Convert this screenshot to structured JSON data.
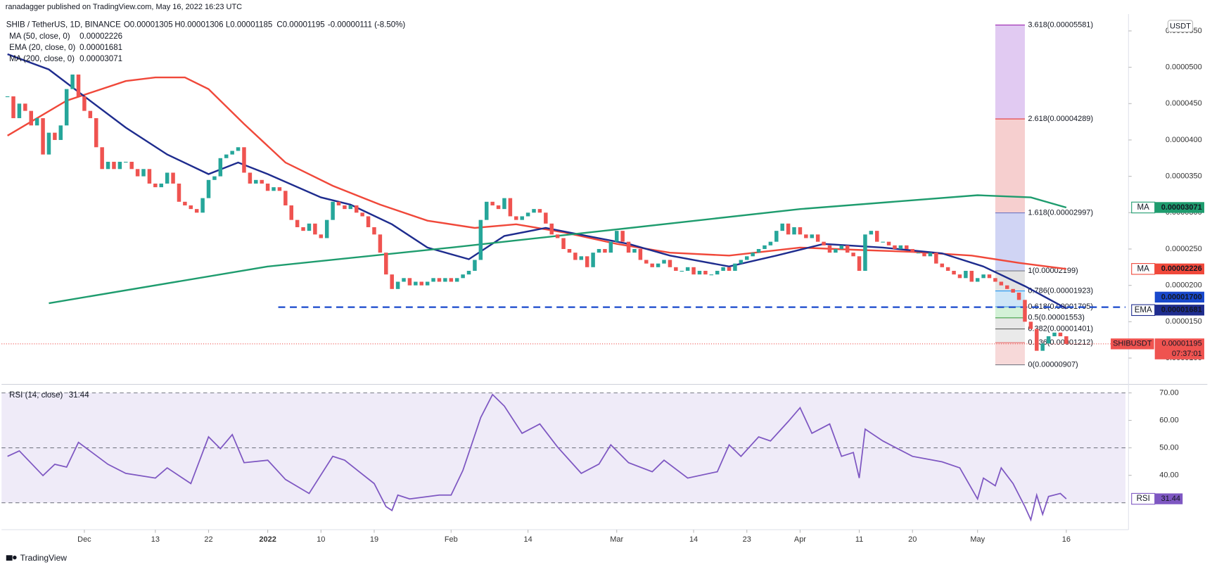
{
  "header": {
    "publisher": "ranadagger published on TradingView.com, May 16, 2022 16:23 UTC"
  },
  "chart_data": [
    {
      "type": "candlestick",
      "title": "SHIB / TetherUS, 1D, BINANCE",
      "ohlc": [
        "O0.00001305",
        "H0.00001306",
        "L0.00001185",
        "C0.00001195",
        "-0.00000111 (-8.50%)"
      ],
      "currency": "USDT",
      "up_color": "#26a69a",
      "down_color": "#ef5350",
      "xlim": [
        "2021-11-17",
        "2022-05-26"
      ],
      "ylim": [
        6.38e-06,
        5.71e-05
      ],
      "yticks": [
        {
          "value": 1e-05,
          "label": "0.0000100"
        },
        {
          "value": 1.5e-05,
          "label": "0.0000150"
        },
        {
          "value": 2e-05,
          "label": "0.0000200"
        },
        {
          "value": 2.5e-05,
          "label": "0.0000250"
        },
        {
          "value": 3e-05,
          "label": "0.0000300"
        },
        {
          "value": 3.5e-05,
          "label": "0.0000350"
        },
        {
          "value": 4e-05,
          "label": "0.0000400"
        },
        {
          "value": 4.5e-05,
          "label": "0.0000450"
        },
        {
          "value": 5e-05,
          "label": "0.0000500"
        },
        {
          "value": 5.5e-05,
          "label": "0.0000550"
        }
      ],
      "x": [
        "2021-11-18",
        "2021-11-19",
        "2021-11-20",
        "2021-11-21",
        "2021-11-22",
        "2021-11-23",
        "2021-11-24",
        "2021-11-25",
        "2021-11-26",
        "2021-11-27",
        "2021-11-28",
        "2021-11-29",
        "2021-11-30",
        "2021-12-01",
        "2021-12-02",
        "2021-12-03",
        "2021-12-04",
        "2021-12-05",
        "2021-12-06",
        "2021-12-07",
        "2021-12-08",
        "2021-12-09",
        "2021-12-10",
        "2021-12-11",
        "2021-12-12",
        "2021-12-13",
        "2021-12-14",
        "2021-12-15",
        "2021-12-16",
        "2021-12-17",
        "2021-12-18",
        "2021-12-19",
        "2021-12-20",
        "2021-12-21",
        "2021-12-22",
        "2021-12-23",
        "2021-12-24",
        "2021-12-25",
        "2021-12-26",
        "2021-12-27",
        "2021-12-28",
        "2021-12-29",
        "2021-12-30",
        "2021-12-31",
        "2022-01-01",
        "2022-01-02",
        "2022-01-03",
        "2022-01-04",
        "2022-01-05",
        "2022-01-06",
        "2022-01-07",
        "2022-01-08",
        "2022-01-09",
        "2022-01-10",
        "2022-01-11",
        "2022-01-12",
        "2022-01-13",
        "2022-01-14",
        "2022-01-15",
        "2022-01-16",
        "2022-01-17",
        "2022-01-18",
        "2022-01-19",
        "2022-01-20",
        "2022-01-21",
        "2022-01-22",
        "2022-01-23",
        "2022-01-24",
        "2022-01-25",
        "2022-01-26",
        "2022-01-27",
        "2022-01-28",
        "2022-01-29",
        "2022-01-30",
        "2022-01-31",
        "2022-02-01",
        "2022-02-02",
        "2022-02-03",
        "2022-02-04",
        "2022-02-05",
        "2022-02-06",
        "2022-02-07",
        "2022-02-08",
        "2022-02-09",
        "2022-02-10",
        "2022-02-11",
        "2022-02-12",
        "2022-02-13",
        "2022-02-14",
        "2022-02-15",
        "2022-02-16",
        "2022-02-17",
        "2022-02-18",
        "2022-02-19",
        "2022-02-20",
        "2022-02-21",
        "2022-02-22",
        "2022-02-23",
        "2022-02-24",
        "2022-02-25",
        "2022-02-26",
        "2022-02-27",
        "2022-02-28",
        "2022-03-01",
        "2022-03-02",
        "2022-03-03",
        "2022-03-04",
        "2022-03-05",
        "2022-03-06",
        "2022-03-07",
        "2022-03-08",
        "2022-03-09",
        "2022-03-10",
        "2022-03-11",
        "2022-03-12",
        "2022-03-13",
        "2022-03-14",
        "2022-03-15",
        "2022-03-16",
        "2022-03-17",
        "2022-03-18",
        "2022-03-19",
        "2022-03-20",
        "2022-03-21",
        "2022-03-22",
        "2022-03-23",
        "2022-03-24",
        "2022-03-25",
        "2022-03-26",
        "2022-03-27",
        "2022-03-28",
        "2022-03-29",
        "2022-03-30",
        "2022-03-31",
        "2022-04-01",
        "2022-04-02",
        "2022-04-03",
        "2022-04-04",
        "2022-04-05",
        "2022-04-06",
        "2022-04-07",
        "2022-04-08",
        "2022-04-09",
        "2022-04-10",
        "2022-04-11",
        "2022-04-12",
        "2022-04-13",
        "2022-04-14",
        "2022-04-15",
        "2022-04-16",
        "2022-04-17",
        "2022-04-18",
        "2022-04-19",
        "2022-04-20",
        "2022-04-21",
        "2022-04-22",
        "2022-04-23",
        "2022-04-24",
        "2022-04-25",
        "2022-04-26",
        "2022-04-27",
        "2022-04-28",
        "2022-04-29",
        "2022-04-30",
        "2022-05-01",
        "2022-05-02",
        "2022-05-03",
        "2022-05-04",
        "2022-05-05",
        "2022-05-06",
        "2022-05-07",
        "2022-05-08",
        "2022-05-09",
        "2022-05-10",
        "2022-05-11",
        "2022-05-12",
        "2022-05-13",
        "2022-05-14",
        "2022-05-15",
        "2022-05-16"
      ],
      "close": [
        4.6e-05,
        4.3e-05,
        4.5e-05,
        4.4e-05,
        4.2e-05,
        4.3e-05,
        3.8e-05,
        4.1e-05,
        4e-05,
        4.2e-05,
        4.7e-05,
        4.9e-05,
        4.6e-05,
        4.4e-05,
        4.3e-05,
        3.9e-05,
        3.6e-05,
        3.7e-05,
        3.6e-05,
        3.7e-05,
        3.7e-05,
        3.6e-05,
        3.5e-05,
        3.6e-05,
        3.4e-05,
        3.35e-05,
        3.4e-05,
        3.55e-05,
        3.4e-05,
        3.15e-05,
        3.1e-05,
        3.05e-05,
        3e-05,
        3.2e-05,
        3.45e-05,
        3.5e-05,
        3.75e-05,
        3.8e-05,
        3.85e-05,
        3.9e-05,
        3.55e-05,
        3.4e-05,
        3.45e-05,
        3.4e-05,
        3.3e-05,
        3.35e-05,
        3.3e-05,
        3.1e-05,
        2.9e-05,
        2.8e-05,
        2.75e-05,
        2.85e-05,
        2.7e-05,
        2.65e-05,
        2.9e-05,
        3.15e-05,
        3.1e-05,
        3.05e-05,
        3.1e-05,
        3e-05,
        2.95e-05,
        2.8e-05,
        2.7e-05,
        2.45e-05,
        2.15e-05,
        1.95e-05,
        2.05e-05,
        2.1e-05,
        2e-05,
        2.05e-05,
        2e-05,
        2.05e-05,
        2.1e-05,
        2.05e-05,
        2.1e-05,
        2.05e-05,
        2.1e-05,
        2.15e-05,
        2.2e-05,
        2.35e-05,
        2.9e-05,
        3.15e-05,
        3.1e-05,
        3.05e-05,
        3.2e-05,
        2.95e-05,
        2.9e-05,
        2.95e-05,
        3e-05,
        3.05e-05,
        3e-05,
        2.85e-05,
        2.7e-05,
        2.65e-05,
        2.5e-05,
        2.45e-05,
        2.35e-05,
        2.4e-05,
        2.25e-05,
        2.45e-05,
        2.5e-05,
        2.45e-05,
        2.6e-05,
        2.75e-05,
        2.6e-05,
        2.45e-05,
        2.5e-05,
        2.35e-05,
        2.3e-05,
        2.25e-05,
        2.3e-05,
        2.35e-05,
        2.25e-05,
        2.2e-05,
        2.2e-05,
        2.25e-05,
        2.15e-05,
        2.2e-05,
        2.15e-05,
        2.15e-05,
        2.2e-05,
        2.25e-05,
        2.2e-05,
        2.3e-05,
        2.35e-05,
        2.4e-05,
        2.45e-05,
        2.5e-05,
        2.55e-05,
        2.6e-05,
        2.75e-05,
        2.85e-05,
        2.7e-05,
        2.8e-05,
        2.7e-05,
        2.65e-05,
        2.7e-05,
        2.6e-05,
        2.55e-05,
        2.45e-05,
        2.5e-05,
        2.55e-05,
        2.45e-05,
        2.4e-05,
        2.2e-05,
        2.7e-05,
        2.75e-05,
        2.6e-05,
        2.6e-05,
        2.55e-05,
        2.5e-05,
        2.55e-05,
        2.5e-05,
        2.45e-05,
        2.45e-05,
        2.4e-05,
        2.45e-05,
        2.3e-05,
        2.25e-05,
        2.2e-05,
        2.15e-05,
        2.1e-05,
        2.2e-05,
        2.05e-05,
        2.1e-05,
        2.15e-05,
        2.1e-05,
        2.05e-05,
        2e-05,
        1.95e-05,
        1.9e-05,
        1.8e-05,
        1.5e-05,
        1.4e-05,
        1.1e-05,
        1.2e-05,
        1.3e-05,
        1.35e-05,
        1.3e-05,
        1.195e-05
      ],
      "series": [
        {
          "name": "MA (50, close, 0)",
          "short": "MA",
          "color": "#f0483a",
          "x": [
            "2021-11-18",
            "2021-11-28",
            "2021-12-08",
            "2021-12-13",
            "2021-12-18",
            "2021-12-22",
            "2021-12-28",
            "2022-01-04",
            "2022-01-12",
            "2022-01-20",
            "2022-01-28",
            "2022-02-05",
            "2022-02-12",
            "2022-02-20",
            "2022-03-01",
            "2022-03-10",
            "2022-03-20",
            "2022-04-01",
            "2022-04-10",
            "2022-04-20",
            "2022-04-30",
            "2022-05-08",
            "2022-05-16"
          ],
          "values": [
            4.06e-05,
            4.54e-05,
            4.81e-05,
            4.86e-05,
            4.86e-05,
            4.7e-05,
            4.22e-05,
            3.69e-05,
            3.37e-05,
            3.11e-05,
            2.89e-05,
            2.79e-05,
            2.84e-05,
            2.73e-05,
            2.57e-05,
            2.45e-05,
            2.41e-05,
            2.52e-05,
            2.49e-05,
            2.46e-05,
            2.41e-05,
            2.31e-05,
            2.226e-05
          ]
        },
        {
          "name": "EMA (20, close, 0)",
          "short": "EMA",
          "color": "#1e2c8e",
          "x": [
            "2021-11-18",
            "2021-11-25",
            "2021-12-01",
            "2021-12-08",
            "2021-12-15",
            "2021-12-22",
            "2021-12-27",
            "2022-01-01",
            "2022-01-10",
            "2022-01-15",
            "2022-01-22",
            "2022-01-28",
            "2022-02-04",
            "2022-02-10",
            "2022-02-17",
            "2022-02-24",
            "2022-03-03",
            "2022-03-10",
            "2022-03-20",
            "2022-03-28",
            "2022-04-05",
            "2022-04-15",
            "2022-04-25",
            "2022-05-02",
            "2022-05-09",
            "2022-05-16"
          ],
          "values": [
            5.18e-05,
            4.97e-05,
            4.6e-05,
            4.17e-05,
            3.8e-05,
            3.53e-05,
            3.69e-05,
            3.53e-05,
            3.21e-05,
            3.11e-05,
            2.84e-05,
            2.52e-05,
            2.36e-05,
            2.68e-05,
            2.79e-05,
            2.68e-05,
            2.57e-05,
            2.41e-05,
            2.26e-05,
            2.41e-05,
            2.57e-05,
            2.52e-05,
            2.44e-05,
            2.26e-05,
            1.99e-05,
            1.681e-05
          ]
        },
        {
          "name": "MA (200, close, 0)",
          "short": "MA",
          "color": "#1e9c6e",
          "x": [
            "2021-11-25",
            "2022-01-01",
            "2022-02-01",
            "2022-03-01",
            "2022-04-01",
            "2022-05-01",
            "2022-05-10",
            "2022-05-16"
          ],
          "values": [
            1.755e-05,
            2.26e-05,
            2.52e-05,
            2.77e-05,
            3.05e-05,
            3.24e-05,
            3.21e-05,
            3.071e-05
          ]
        }
      ],
      "hline": {
        "value": 1.7e-05,
        "label": "0.00001700",
        "color": "#1848cc"
      },
      "last_price": {
        "name": "SHIBUSDT",
        "value": 1.195e-05,
        "countdown": "07:37:01",
        "color": "#ef5350"
      },
      "fib": {
        "x": [
          "2022-05-04",
          "2022-05-09"
        ],
        "levels": [
          {
            "value": 5.581e-05,
            "label": "3.618(0.00005581)",
            "color": "#9c27b0",
            "fill": "#dcc1f0"
          },
          {
            "value": 4.289e-05,
            "label": "2.618(0.00004289)",
            "color": "#e53935",
            "fill": "#f4c7c7"
          },
          {
            "value": 2.997e-05,
            "label": "1.618(0.00002997)",
            "color": "#5c6bc0",
            "fill": "#c8ccf2"
          },
          {
            "value": 2.199e-05,
            "label": "1(0.00002199)",
            "color": "#787b86",
            "fill": "#dedede"
          },
          {
            "value": 1.923e-05,
            "label": "0.786(0.00001923)",
            "color": "#2196f3",
            "fill": "#c6e2f6"
          },
          {
            "value": 1.705e-05,
            "label": "0.618(0.00001705)",
            "color": "#1e88e5",
            "fill": "#cbeed0"
          },
          {
            "value": 1.553e-05,
            "label": "0.5(0.00001553)",
            "color": "#43a047",
            "fill": "#e3e3e3"
          },
          {
            "value": 1.401e-05,
            "label": "0.382(0.00001401)",
            "color": "#616161",
            "fill": "#e6e6e6"
          },
          {
            "value": 1.212e-05,
            "label": "0.236(0.00001212)",
            "color": "#e57373",
            "fill": "#f6d2d2"
          },
          {
            "value": 9.07e-06,
            "label": "0(0.00000907)",
            "color": "#787b86"
          }
        ]
      }
    },
    {
      "type": "line",
      "title": "RSI (14, close)",
      "name": "RSI",
      "color": "#7e57c2",
      "last": 31.44,
      "xlim": [
        "2021-11-17",
        "2022-05-26"
      ],
      "xticks": [
        {
          "value": "2021-12-01",
          "label": "Dec"
        },
        {
          "value": "2021-12-13",
          "label": "13"
        },
        {
          "value": "2021-12-22",
          "label": "22"
        },
        {
          "value": "2022-01-01",
          "label": "2022"
        },
        {
          "value": "2022-01-10",
          "label": "10"
        },
        {
          "value": "2022-01-19",
          "label": "19"
        },
        {
          "value": "2022-02-01",
          "label": "Feb"
        },
        {
          "value": "2022-02-14",
          "label": "14"
        },
        {
          "value": "2022-03-01",
          "label": "Mar"
        },
        {
          "value": "2022-03-14",
          "label": "14"
        },
        {
          "value": "2022-03-23",
          "label": "23"
        },
        {
          "value": "2022-04-01",
          "label": "Apr"
        },
        {
          "value": "2022-04-11",
          "label": "11"
        },
        {
          "value": "2022-04-20",
          "label": "20"
        },
        {
          "value": "2022-05-01",
          "label": "May"
        },
        {
          "value": "2022-05-16",
          "label": "16"
        }
      ],
      "ylim": [
        20.2,
        73.1
      ],
      "yticks": [
        {
          "value": 40,
          "label": "40.00"
        },
        {
          "value": 50,
          "label": "50.00"
        },
        {
          "value": 60,
          "label": "60.00"
        },
        {
          "value": 70,
          "label": "70.00"
        }
      ],
      "levels": [
        30,
        50,
        70
      ],
      "x": [
        "2021-11-18",
        "2021-11-20",
        "2021-11-24",
        "2021-11-26",
        "2021-11-28",
        "2021-11-30",
        "2021-12-05",
        "2021-12-08",
        "2021-12-13",
        "2021-12-15",
        "2021-12-19",
        "2021-12-22",
        "2021-12-24",
        "2021-12-26",
        "2021-12-28",
        "2022-01-01",
        "2022-01-04",
        "2022-01-08",
        "2022-01-12",
        "2022-01-14",
        "2022-01-19",
        "2022-01-21",
        "2022-01-22",
        "2022-01-23",
        "2022-01-25",
        "2022-01-30",
        "2022-02-01",
        "2022-02-03",
        "2022-02-06",
        "2022-02-08",
        "2022-02-10",
        "2022-02-13",
        "2022-02-16",
        "2022-02-19",
        "2022-02-23",
        "2022-02-26",
        "2022-02-28",
        "2022-03-03",
        "2022-03-07",
        "2022-03-09",
        "2022-03-13",
        "2022-03-18",
        "2022-03-20",
        "2022-03-22",
        "2022-03-25",
        "2022-03-27",
        "2022-03-30",
        "2022-04-01",
        "2022-04-03",
        "2022-04-06",
        "2022-04-08",
        "2022-04-10",
        "2022-04-11",
        "2022-04-12",
        "2022-04-15",
        "2022-04-20",
        "2022-04-25",
        "2022-04-28",
        "2022-05-01",
        "2022-05-02",
        "2022-05-04",
        "2022-05-05",
        "2022-05-07",
        "2022-05-09",
        "2022-05-10",
        "2022-05-11",
        "2022-05-12",
        "2022-05-13",
        "2022-05-15",
        "2022-05-16"
      ],
      "values": [
        46.9,
        48.9,
        39.9,
        44,
        43,
        52,
        44,
        40.7,
        39,
        42.7,
        37,
        54,
        49.7,
        54.8,
        44.6,
        45.5,
        38.5,
        33.4,
        46.9,
        45.5,
        37,
        28.6,
        27.2,
        32.8,
        31.4,
        32.8,
        32.8,
        41.8,
        61,
        69.4,
        65.2,
        55.3,
        58.7,
        50.3,
        40.7,
        44.1,
        51.1,
        44.6,
        41.3,
        45.5,
        39,
        41.3,
        51.1,
        46.9,
        54,
        52.5,
        59.6,
        64.6,
        55.3,
        58.7,
        46.9,
        48.3,
        39,
        56.8,
        52.5,
        46.9,
        44.9,
        42.7,
        31.4,
        39,
        36.2,
        42.7,
        37,
        28.6,
        23.8,
        32.8,
        25.8,
        32.3,
        33.4,
        31.44
      ]
    }
  ],
  "footer": {
    "brand": "TradingView"
  }
}
